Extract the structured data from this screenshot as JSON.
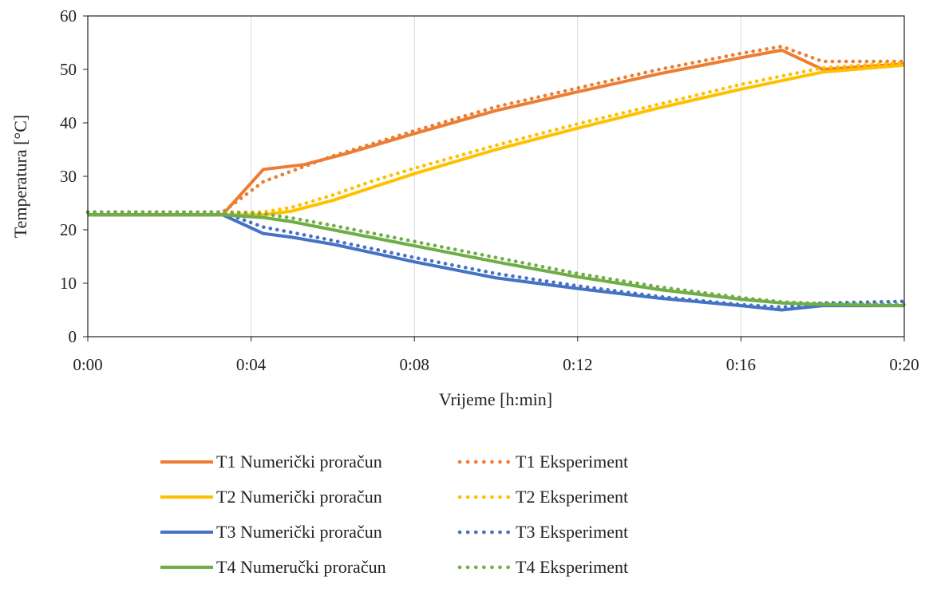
{
  "chart_data": {
    "type": "line",
    "xlabel": "Vrijeme [h:min]",
    "ylabel": "Temperatura [°C]",
    "xlim": [
      0,
      20
    ],
    "ylim": [
      0,
      60
    ],
    "x_ticks": [
      0,
      4,
      8,
      12,
      16,
      20
    ],
    "x_tick_labels": [
      "0:00",
      "0:04",
      "0:08",
      "0:12",
      "0:16",
      "0:20"
    ],
    "y_ticks": [
      0,
      10,
      20,
      30,
      40,
      50,
      60
    ],
    "y_tick_labels": [
      "0",
      "10",
      "20",
      "30",
      "40",
      "50",
      "60"
    ],
    "grid": "vertical",
    "legend_position": "bottom",
    "series": [
      {
        "name": "T1 Numerički proračun",
        "color": "#ED7D31",
        "style": "solid",
        "x": [
          0,
          3.3,
          4.3,
          5.3,
          6.3,
          8,
          10,
          12,
          14,
          16,
          17,
          18,
          20
        ],
        "y": [
          22.8,
          22.8,
          31.3,
          32.2,
          34.2,
          38,
          42.3,
          45.8,
          49.2,
          52.2,
          53.6,
          50,
          51
        ]
      },
      {
        "name": "T1 Eksperiment",
        "color": "#ED7D31",
        "style": "dotted",
        "x": [
          0,
          3.3,
          4.3,
          5,
          6,
          8,
          10,
          12,
          14,
          16,
          17,
          18,
          20
        ],
        "y": [
          23.3,
          23.3,
          29,
          31,
          33.8,
          38.5,
          43,
          46.5,
          50,
          53,
          54.3,
          51.5,
          51.5
        ]
      },
      {
        "name": "T2 Numerički proračun",
        "color": "#FFC000",
        "style": "solid",
        "x": [
          0,
          3.3,
          4.3,
          5,
          6,
          7,
          8,
          10,
          12,
          14,
          16,
          18,
          20
        ],
        "y": [
          22.8,
          22.8,
          22.8,
          23.5,
          25.5,
          28,
          30.5,
          35,
          39,
          42.8,
          46.3,
          49.5,
          50.8
        ]
      },
      {
        "name": "T2 Eksperiment",
        "color": "#FFC000",
        "style": "dotted",
        "x": [
          0,
          3.3,
          4.3,
          5,
          6,
          7,
          8,
          10,
          12,
          14,
          16,
          18,
          20
        ],
        "y": [
          23.3,
          23.3,
          23.3,
          24.2,
          26.5,
          29.2,
          31.5,
          35.8,
          39.8,
          43.5,
          47.2,
          50.3,
          51.3
        ]
      },
      {
        "name": "T3 Numerički proračun",
        "color": "#4472C4",
        "style": "solid",
        "x": [
          0,
          3.3,
          4.3,
          5,
          6,
          8,
          10,
          12,
          14,
          16,
          17,
          18,
          20
        ],
        "y": [
          22.8,
          22.8,
          19.3,
          18.6,
          17.3,
          14,
          11,
          9,
          7.2,
          5.8,
          5,
          5.8,
          5.8
        ]
      },
      {
        "name": "T3 Eksperiment",
        "color": "#4472C4",
        "style": "dotted",
        "x": [
          0,
          3.3,
          4.3,
          5,
          6,
          8,
          10,
          12,
          14,
          16,
          17,
          18,
          20
        ],
        "y": [
          23.3,
          23.3,
          20.5,
          19.5,
          18,
          14.8,
          11.8,
          9.5,
          7.5,
          6,
          5.5,
          6.3,
          6.6
        ]
      },
      {
        "name": "T4 Numeručki proračun",
        "color": "#70AD47",
        "style": "solid",
        "x": [
          0,
          3.3,
          4.3,
          5,
          6,
          8,
          10,
          12,
          14,
          16,
          17,
          18,
          20
        ],
        "y": [
          22.8,
          22.8,
          22.3,
          21.5,
          20,
          17,
          14,
          11.2,
          8.8,
          7,
          6.3,
          6,
          5.8
        ]
      },
      {
        "name": "T4 Eksperiment",
        "color": "#70AD47",
        "style": "dotted",
        "x": [
          0,
          3.3,
          4.3,
          5,
          6,
          8,
          10,
          12,
          14,
          16,
          17,
          18,
          20
        ],
        "y": [
          23.3,
          23.3,
          23,
          22.2,
          20.8,
          17.8,
          14.8,
          11.8,
          9.3,
          7.3,
          6.5,
          6.2,
          6
        ]
      }
    ]
  }
}
